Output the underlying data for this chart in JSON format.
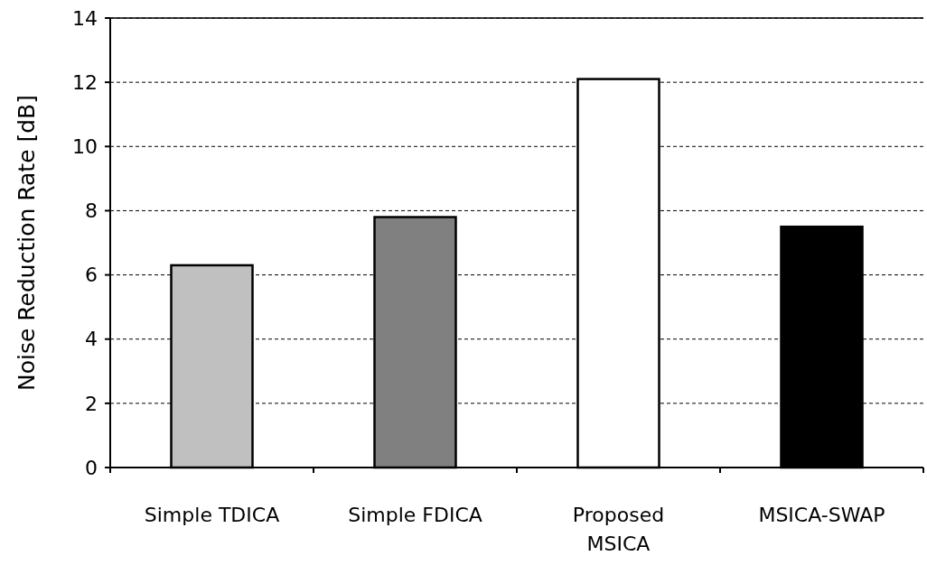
{
  "chart_data": {
    "type": "bar",
    "ylabel": "Noise Reduction Rate [dB]",
    "categories": [
      "Simple TDICA",
      "Simple FDICA",
      "Proposed\nMSICA",
      "MSICA-SWAP"
    ],
    "values": [
      6.3,
      7.8,
      12.1,
      7.5
    ],
    "colors": [
      "#c0c0c0",
      "#808080",
      "#ffffff",
      "#000000"
    ],
    "ylim": [
      0,
      14
    ],
    "yticks": [
      0,
      2,
      4,
      6,
      8,
      10,
      12,
      14
    ],
    "grid": "y"
  }
}
